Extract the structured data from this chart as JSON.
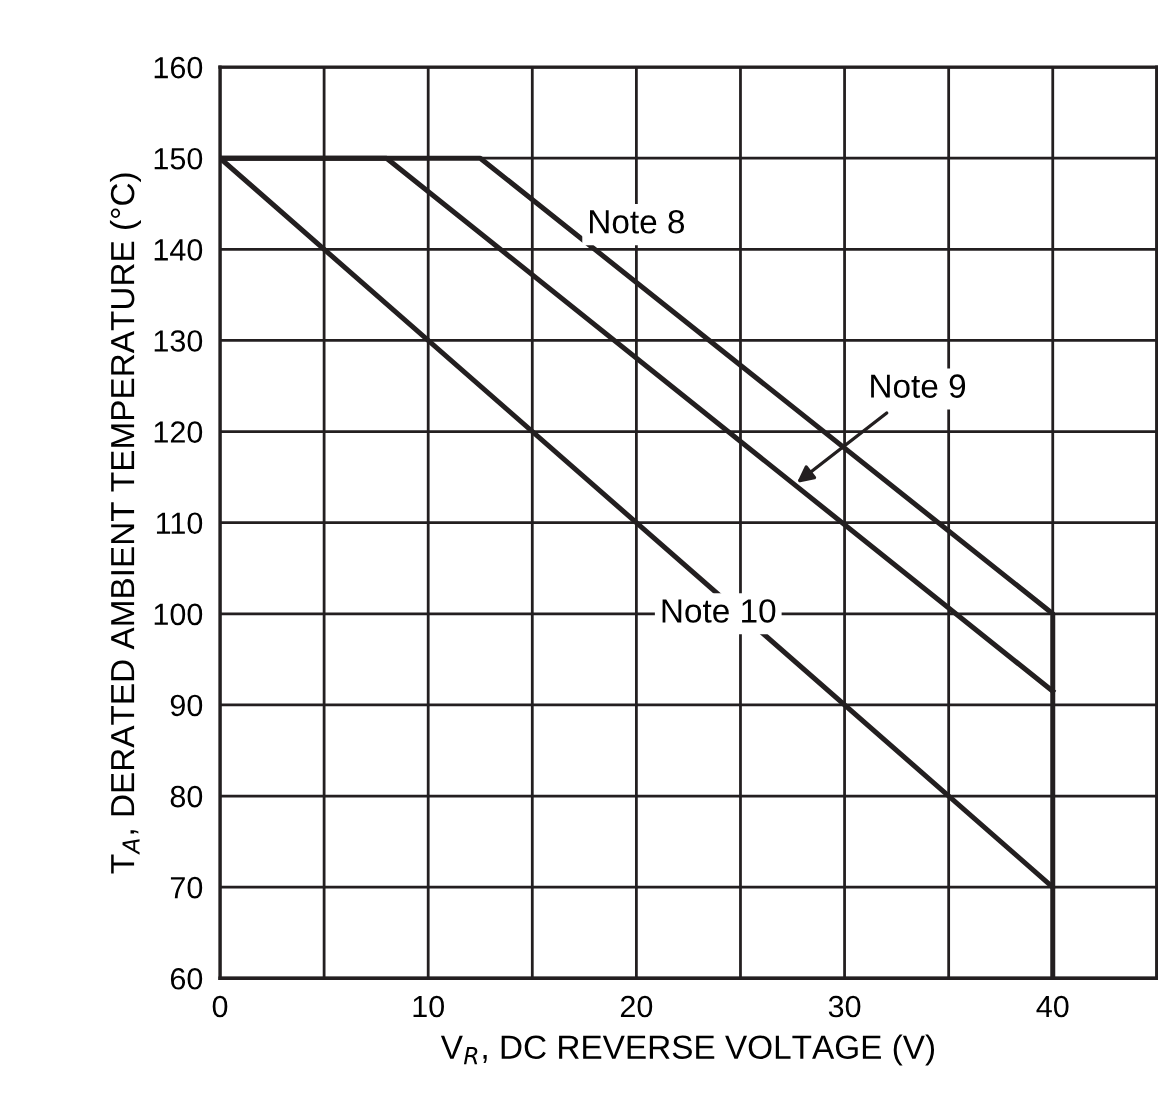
{
  "chart_data": {
    "type": "line",
    "xlabel": "V$_{R}$, DC REVERSE VOLTAGE (V)",
    "ylabel": "T$_{A}$, DERATED AMBIENT TEMPERATURE (°C)",
    "series": [
      {
        "color": "#231f20",
        "x": [
          0,
          12.5,
          40,
          40
        ],
        "values": [
          150,
          150,
          100,
          60
        ]
      },
      {
        "color": "#231f20",
        "x": [
          0,
          8,
          40
        ],
        "values": [
          150,
          150,
          91.5
        ]
      },
      {
        "color": "#231f20",
        "x": [
          0,
          40
        ],
        "values": [
          150,
          70
        ]
      }
    ],
    "annotations": [
      {
        "text": "Note 8",
        "x": 20,
        "y": 136
      },
      {
        "text": "Note 9",
        "x": 27.5,
        "y": 114
      },
      {
        "text": "Note 10",
        "x": 25,
        "y": 100
      }
    ],
    "xlim": [
      0,
      45
    ],
    "ylim": [
      60,
      160
    ],
    "xticks": [
      0,
      {
        "value": 5,
        "label": null
      },
      10,
      {
        "value": 15,
        "label": null
      },
      20,
      {
        "value": 25,
        "label": null
      },
      30,
      {
        "value": 35,
        "label": null
      },
      40,
      {
        "value": 45,
        "label": null
      }
    ],
    "yticks": [
      60,
      70,
      80,
      90,
      100,
      110,
      120,
      130,
      140,
      150,
      160
    ],
    "grid": true,
    "marker": "none",
    "line_style": "solid"
  }
}
